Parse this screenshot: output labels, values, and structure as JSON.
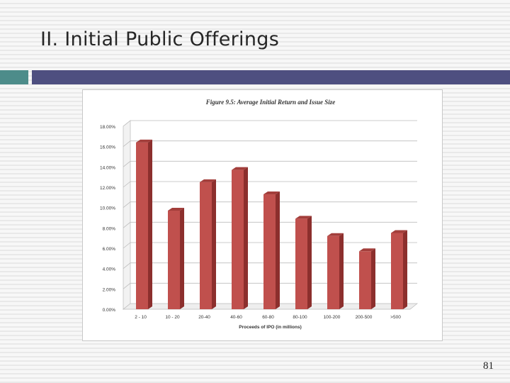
{
  "slide": {
    "title": "II. Initial Public Offerings",
    "page_number": "81"
  },
  "colors": {
    "accent_square": "#4d8c8a",
    "accent_bar": "#4e4f80",
    "bar_front": "#c0504d",
    "bar_side": "#8c2f2d",
    "bar_top": "#a33e3b"
  },
  "chart_data": {
    "type": "bar",
    "title": "Figure 9.5: Average Initial Return and Issue Size",
    "xlabel": "Proceeds of IPO (in millions)",
    "ylabel": "",
    "categories": [
      "2 - 10",
      "10 - 20",
      "20-40",
      "40-60",
      "60-80",
      "80-100",
      "100-200",
      "200-500",
      ">500"
    ],
    "values": [
      16.4,
      9.7,
      12.5,
      13.7,
      11.3,
      8.9,
      7.2,
      5.7,
      7.5
    ],
    "ylim": [
      0,
      18
    ],
    "yticks": [
      "0.00%",
      "2.00%",
      "4.00%",
      "6.00%",
      "8.00%",
      "10.00%",
      "12.00%",
      "14.00%",
      "16.00%",
      "18.00%"
    ],
    "grid": true,
    "legend": "none"
  }
}
